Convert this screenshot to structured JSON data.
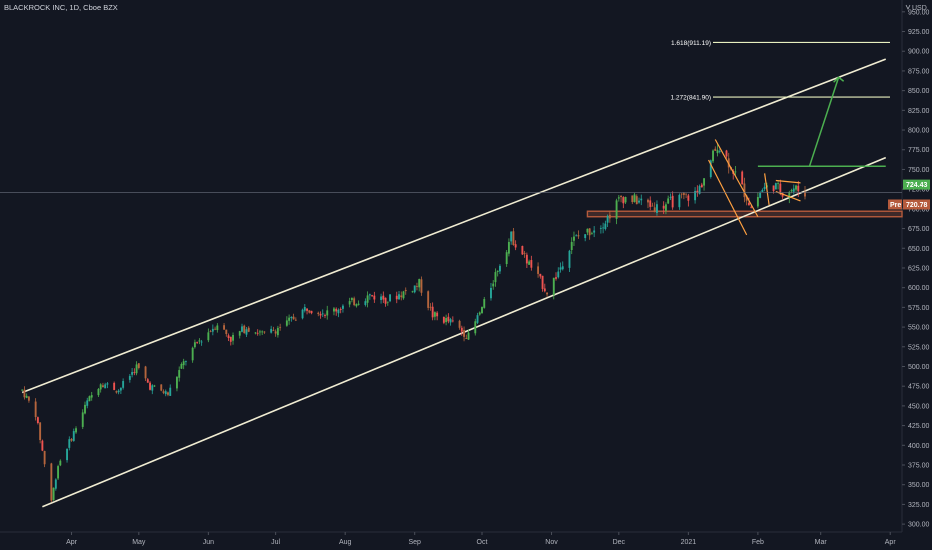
{
  "header": {
    "title": "BLACKROCK INC, 1D, Cboe BZX",
    "currency": "USD"
  },
  "colors": {
    "background": "#131722",
    "up": "#26a69a",
    "up_bright": "#4caf50",
    "down": "#ef5350",
    "down_muted": "#b5653d",
    "channel": "#f0ecd2",
    "fib": "#e8f0c0",
    "arrow": "#4caf50",
    "box": "#b55a3c",
    "flag": "#ffa040"
  },
  "chart_data": {
    "type": "candlestick",
    "title": "BLACKROCK INC, 1D, Cboe BZX",
    "ylabel": "USD",
    "ylim": [
      290,
      965
    ],
    "y_ticks": [
      300,
      325,
      350,
      375,
      400,
      425,
      450,
      475,
      500,
      525,
      550,
      575,
      600,
      625,
      650,
      675,
      700,
      725,
      750,
      775,
      800,
      825,
      850,
      875,
      900,
      925,
      950
    ],
    "y_tick_labels": [
      "300.00",
      "325.00",
      "350.00",
      "375.00",
      "400.00",
      "425.00",
      "450.00",
      "475.00",
      "500.00",
      "525.00",
      "550.00",
      "575.00",
      "600.00",
      "625.00",
      "650.00",
      "675.00",
      "700.00",
      "725.00",
      "750.00",
      "775.00",
      "800.00",
      "825.00",
      "850.00",
      "875.00",
      "900.00",
      "925.00",
      "950.00"
    ],
    "x_labels": [
      "Apr",
      "May",
      "Jun",
      "Jul",
      "Aug",
      "Sep",
      "Oct",
      "Nov",
      "Dec",
      "2021",
      "Feb",
      "Mar",
      "Apr"
    ],
    "trend_points": [
      {
        "date": "2020-03-10",
        "close": 470
      },
      {
        "date": "2020-03-16",
        "close": 440
      },
      {
        "date": "2020-03-23",
        "close": 330
      },
      {
        "date": "2020-03-26",
        "close": 375
      },
      {
        "date": "2020-04-01",
        "close": 410
      },
      {
        "date": "2020-04-08",
        "close": 455
      },
      {
        "date": "2020-04-14",
        "close": 480
      },
      {
        "date": "2020-04-22",
        "close": 470
      },
      {
        "date": "2020-04-30",
        "close": 500
      },
      {
        "date": "2020-05-06",
        "close": 475
      },
      {
        "date": "2020-05-14",
        "close": 465
      },
      {
        "date": "2020-05-20",
        "close": 500
      },
      {
        "date": "2020-05-27",
        "close": 530
      },
      {
        "date": "2020-06-05",
        "close": 555
      },
      {
        "date": "2020-06-11",
        "close": 535
      },
      {
        "date": "2020-06-18",
        "close": 550
      },
      {
        "date": "2020-06-26",
        "close": 540
      },
      {
        "date": "2020-07-06",
        "close": 555
      },
      {
        "date": "2020-07-15",
        "close": 575
      },
      {
        "date": "2020-07-24",
        "close": 568
      },
      {
        "date": "2020-08-03",
        "close": 580
      },
      {
        "date": "2020-08-12",
        "close": 590
      },
      {
        "date": "2020-08-20",
        "close": 585
      },
      {
        "date": "2020-08-28",
        "close": 595
      },
      {
        "date": "2020-09-03",
        "close": 605
      },
      {
        "date": "2020-09-09",
        "close": 565
      },
      {
        "date": "2020-09-18",
        "close": 555
      },
      {
        "date": "2020-09-25",
        "close": 538
      },
      {
        "date": "2020-10-02",
        "close": 580
      },
      {
        "date": "2020-10-08",
        "close": 625
      },
      {
        "date": "2020-10-14",
        "close": 665
      },
      {
        "date": "2020-10-22",
        "close": 630
      },
      {
        "date": "2020-10-30",
        "close": 595
      },
      {
        "date": "2020-11-04",
        "close": 620
      },
      {
        "date": "2020-11-10",
        "close": 660
      },
      {
        "date": "2020-11-18",
        "close": 672
      },
      {
        "date": "2020-11-25",
        "close": 685
      },
      {
        "date": "2020-12-02",
        "close": 715
      },
      {
        "date": "2020-12-10",
        "close": 710
      },
      {
        "date": "2020-12-18",
        "close": 702
      },
      {
        "date": "2020-12-28",
        "close": 712
      },
      {
        "date": "2021-01-05",
        "close": 720
      },
      {
        "date": "2021-01-11",
        "close": 760
      },
      {
        "date": "2021-01-14",
        "close": 782
      },
      {
        "date": "2021-01-20",
        "close": 755
      },
      {
        "date": "2021-01-27",
        "close": 715
      },
      {
        "date": "2021-01-29",
        "close": 702
      },
      {
        "date": "2021-02-03",
        "close": 725
      },
      {
        "date": "2021-02-08",
        "close": 730
      },
      {
        "date": "2021-02-12",
        "close": 722
      },
      {
        "date": "2021-02-17",
        "close": 726
      },
      {
        "date": "2021-02-22",
        "close": 720.78
      }
    ],
    "last_price": {
      "label": "720.78",
      "prefix": "Pre"
    },
    "current_price_label": "724.43",
    "annotations": [
      {
        "name": "fib-1618",
        "label": "1.618(911.19)",
        "value": 911.19
      },
      {
        "name": "fib-1272",
        "label": "1.272(841.90)",
        "value": 841.9
      }
    ],
    "channel": {
      "upper": [
        {
          "date": "2020-03-10",
          "value": 467
        },
        {
          "date": "2021-03-30",
          "value": 890
        }
      ],
      "lower": [
        {
          "date": "2020-03-19",
          "value": 322
        },
        {
          "date": "2021-03-30",
          "value": 765
        }
      ]
    },
    "support_zone": {
      "from_date": "2020-11-17",
      "low": 690,
      "high": 697
    },
    "breakout_level": {
      "from_date": "2021-02-01",
      "to_date": "2021-03-30",
      "value": 754
    },
    "target_arrow": {
      "from_date": "2021-02-24",
      "from_value": 754,
      "to_date": "2021-03-09",
      "to_value": 867
    },
    "grid": false
  }
}
